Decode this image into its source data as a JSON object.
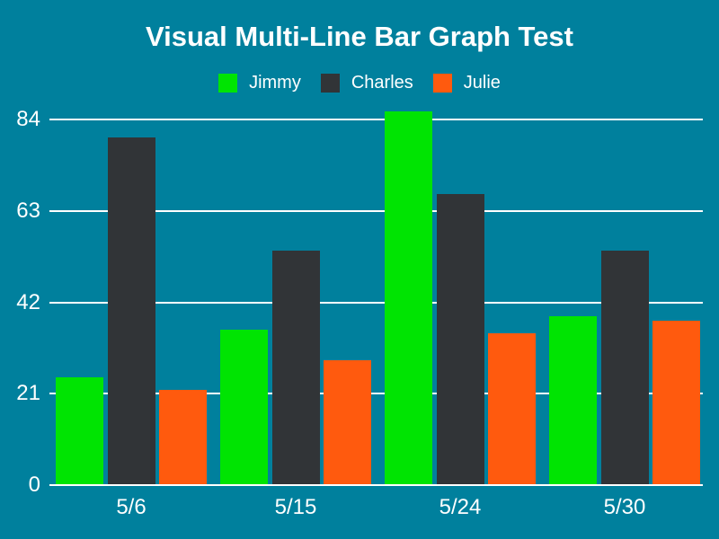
{
  "page": {
    "background_color": "#00809d",
    "text_color": "#ffffff"
  },
  "chart_data": {
    "type": "bar",
    "title": "Visual Multi-Line Bar Graph Test",
    "categories": [
      "5/6",
      "5/15",
      "5/24",
      "5/30"
    ],
    "series": [
      {
        "name": "Jimmy",
        "color": "#00e402",
        "values": [
          25,
          36,
          86,
          39
        ]
      },
      {
        "name": "Charles",
        "color": "#313437",
        "values": [
          80,
          54,
          67,
          54
        ]
      },
      {
        "name": "Julie",
        "color": "#ff5a0e",
        "values": [
          22,
          29,
          35,
          38
        ]
      }
    ],
    "xlabel": "",
    "ylabel": "",
    "yticks": [
      0,
      21,
      42,
      63,
      84
    ],
    "ylim": [
      0,
      88
    ],
    "grid": true,
    "gridline_color": "#ffffff",
    "axis_text_color": "#ffffff",
    "legend_position": "top"
  }
}
